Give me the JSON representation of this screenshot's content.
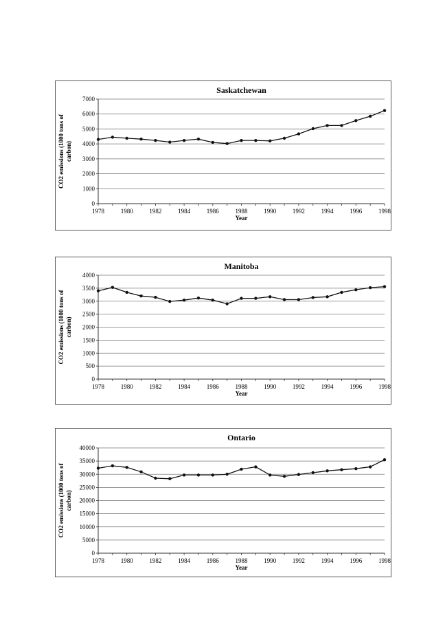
{
  "chart_data": [
    {
      "type": "line",
      "title": "Saskatchewan",
      "xlabel": "Year",
      "ylabel_line1": "CO2 emissions (1000 tons of",
      "ylabel_line2": "carbon)",
      "xlim": [
        1978,
        1998
      ],
      "ylim": [
        0,
        7000
      ],
      "ytick_step": 1000,
      "xtick_labels": [
        "1978",
        "1980",
        "1982",
        "1984",
        "1986",
        "1988",
        "1990",
        "1992",
        "1994",
        "1996",
        "1998"
      ],
      "ytick_labels": [
        "0",
        "1000",
        "2000",
        "3000",
        "4000",
        "5000",
        "6000",
        "7000"
      ],
      "grid": "horizontal",
      "x": [
        1978,
        1979,
        1980,
        1981,
        1982,
        1983,
        1984,
        1985,
        1986,
        1987,
        1988,
        1989,
        1990,
        1991,
        1992,
        1993,
        1994,
        1995,
        1996,
        1997,
        1998
      ],
      "y": [
        4300,
        4450,
        4380,
        4320,
        4230,
        4120,
        4230,
        4320,
        4100,
        4020,
        4230,
        4230,
        4200,
        4380,
        4670,
        5020,
        5230,
        5230,
        5560,
        5850,
        6230
      ]
    },
    {
      "type": "line",
      "title": "Manitoba",
      "xlabel": "Year",
      "ylabel_line1": "CO2 emissions (1000 tons of",
      "ylabel_line2": "carbon)",
      "xlim": [
        1978,
        1998
      ],
      "ylim": [
        0,
        4000
      ],
      "ytick_step": 500,
      "xtick_labels": [
        "1978",
        "1980",
        "1982",
        "1984",
        "1986",
        "1988",
        "1990",
        "1992",
        "1994",
        "1996",
        "1998"
      ],
      "ytick_labels": [
        "0",
        "500",
        "1000",
        "1500",
        "2000",
        "2500",
        "3000",
        "3500",
        "4000"
      ],
      "grid": "horizontal",
      "x": [
        1978,
        1979,
        1980,
        1981,
        1982,
        1983,
        1984,
        1985,
        1986,
        1987,
        1988,
        1989,
        1990,
        1991,
        1992,
        1993,
        1994,
        1995,
        1996,
        1997,
        1998
      ],
      "y": [
        3400,
        3530,
        3340,
        3200,
        3150,
        2990,
        3040,
        3120,
        3040,
        2900,
        3110,
        3110,
        3170,
        3060,
        3060,
        3140,
        3170,
        3340,
        3440,
        3520,
        3560
      ]
    },
    {
      "type": "line",
      "title": "Ontario",
      "xlabel": "Year",
      "ylabel_line1": "CO2 emissions (1000 tons of",
      "ylabel_line2": "carbon)",
      "xlim": [
        1978,
        1998
      ],
      "ylim": [
        0,
        40000
      ],
      "ytick_step": 5000,
      "xtick_labels": [
        "1978",
        "1980",
        "1982",
        "1984",
        "1986",
        "1988",
        "1990",
        "1992",
        "1994",
        "1996",
        "1998"
      ],
      "ytick_labels": [
        "0",
        "5000",
        "10000",
        "15000",
        "20000",
        "25000",
        "30000",
        "35000",
        "40000"
      ],
      "grid": "horizontal",
      "x": [
        1978,
        1979,
        1980,
        1981,
        1982,
        1983,
        1984,
        1985,
        1986,
        1987,
        1988,
        1989,
        1990,
        1991,
        1992,
        1993,
        1994,
        1995,
        1996,
        1997,
        1998
      ],
      "y": [
        32300,
        33200,
        32600,
        30900,
        28500,
        28300,
        29700,
        29700,
        29700,
        30000,
        31900,
        32800,
        29700,
        29200,
        29900,
        30600,
        31300,
        31700,
        32100,
        32800,
        35500
      ]
    }
  ]
}
